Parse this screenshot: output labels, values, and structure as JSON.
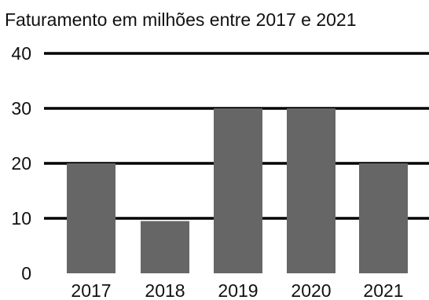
{
  "chart_data": {
    "type": "bar",
    "title": "Faturamento em milhões entre 2017 e 2021",
    "categories": [
      "2017",
      "2018",
      "2019",
      "2020",
      "2021"
    ],
    "values": [
      20,
      9.5,
      30,
      30,
      20
    ],
    "ylim": [
      0,
      40
    ],
    "yticks": [
      0,
      10,
      20,
      30,
      40
    ],
    "xlabel": "",
    "ylabel": "",
    "grid": true,
    "legend": "none",
    "colors": {
      "bar": "#666666",
      "grid": "#000000",
      "text": "#111111"
    }
  }
}
